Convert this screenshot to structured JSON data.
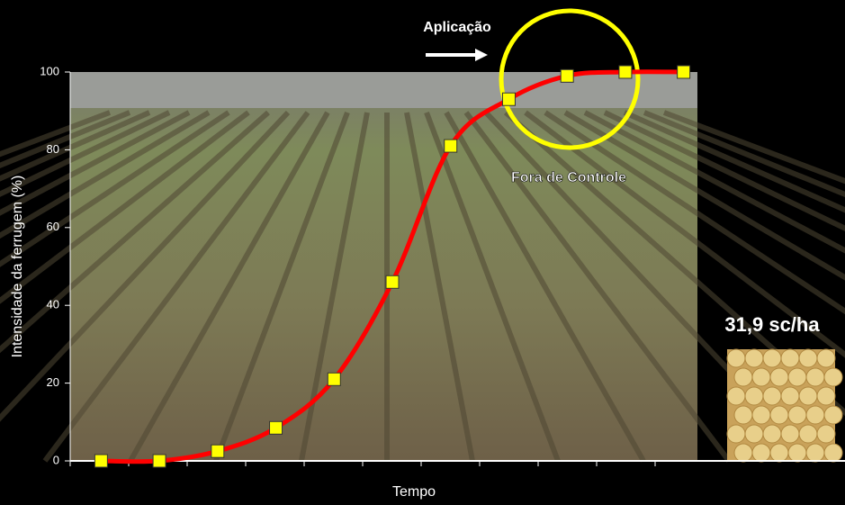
{
  "chart_data": {
    "type": "line",
    "ylabel": "Intensidade da ferrugem (%)",
    "xlabel": "Tempo",
    "categories": [
      null,
      null,
      null,
      null,
      null,
      null,
      null,
      null,
      null,
      null,
      null
    ],
    "series": [
      {
        "name": null,
        "color": "#ff0000",
        "marker_color": "#ffff00",
        "values": [
          0,
          0,
          2.5,
          8.5,
          21,
          46,
          81,
          93,
          99,
          100,
          100
        ]
      }
    ],
    "ylim": [
      0,
      100
    ],
    "yticks": [
      0,
      20,
      40,
      60,
      80,
      100
    ],
    "annotations": {
      "application": "Aplicação",
      "out_of_control": "Fora de Controle",
      "yield": "31,9 sc/ha"
    }
  }
}
